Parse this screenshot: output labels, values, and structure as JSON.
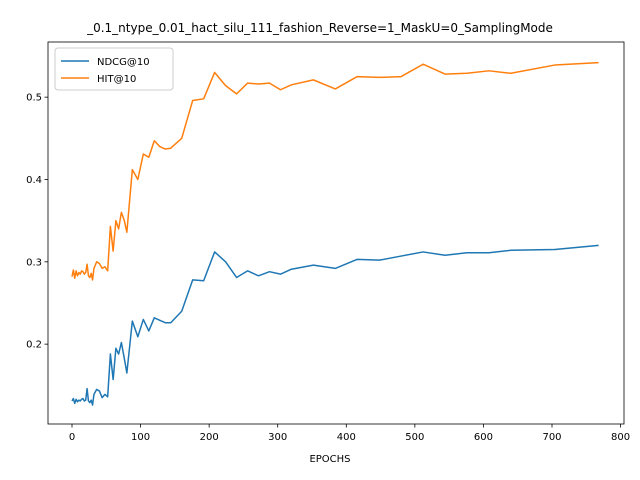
{
  "chart_data": {
    "type": "line",
    "title": "_0.1_ntype_0.01_hact_silu_111_fashion_Reverse=1_MaskU=0_SamplingMode",
    "xlabel": "EPOCHS",
    "ylabel": "",
    "xlim": [
      -35,
      805
    ],
    "ylim": [
      0.103,
      0.567
    ],
    "xticks": [
      0,
      100,
      200,
      300,
      400,
      500,
      600,
      700,
      800
    ],
    "yticks": [
      0.2,
      0.3,
      0.4,
      0.5
    ],
    "grid": false,
    "legend": "top-left",
    "series": [
      {
        "name": "NDCG@10",
        "color": "#1f77b4",
        "x": [
          0,
          2,
          4,
          6,
          8,
          10,
          12,
          14,
          16,
          18,
          20,
          22,
          24,
          26,
          28,
          30,
          32,
          36,
          40,
          44,
          48,
          52,
          56,
          60,
          64,
          68,
          72,
          76,
          80,
          88,
          96,
          104,
          112,
          120,
          128,
          136,
          144,
          160,
          176,
          192,
          208,
          224,
          240,
          256,
          272,
          288,
          304,
          320,
          352,
          384,
          416,
          448,
          480,
          512,
          544,
          576,
          608,
          640,
          704,
          768
        ],
        "y": [
          0.131,
          0.134,
          0.128,
          0.133,
          0.13,
          0.132,
          0.131,
          0.133,
          0.134,
          0.131,
          0.132,
          0.146,
          0.131,
          0.129,
          0.132,
          0.126,
          0.139,
          0.145,
          0.143,
          0.135,
          0.139,
          0.136,
          0.188,
          0.157,
          0.195,
          0.188,
          0.202,
          0.184,
          0.165,
          0.228,
          0.209,
          0.23,
          0.216,
          0.232,
          0.229,
          0.226,
          0.226,
          0.24,
          0.278,
          0.277,
          0.312,
          0.3,
          0.281,
          0.289,
          0.283,
          0.288,
          0.285,
          0.291,
          0.296,
          0.292,
          0.303,
          0.302,
          0.307,
          0.312,
          0.308,
          0.311,
          0.311,
          0.314,
          0.315,
          0.32
        ]
      },
      {
        "name": "HIT@10",
        "color": "#ff7f0e",
        "x": [
          0,
          2,
          4,
          6,
          8,
          10,
          12,
          14,
          16,
          18,
          20,
          22,
          24,
          26,
          28,
          30,
          32,
          36,
          40,
          44,
          48,
          52,
          56,
          60,
          64,
          68,
          72,
          76,
          80,
          88,
          96,
          104,
          112,
          120,
          128,
          136,
          144,
          160,
          176,
          192,
          208,
          224,
          240,
          256,
          272,
          288,
          304,
          320,
          352,
          384,
          416,
          448,
          480,
          512,
          544,
          576,
          608,
          640,
          704,
          768
        ],
        "y": [
          0.282,
          0.29,
          0.28,
          0.289,
          0.283,
          0.287,
          0.285,
          0.289,
          0.288,
          0.285,
          0.287,
          0.297,
          0.283,
          0.281,
          0.286,
          0.278,
          0.292,
          0.3,
          0.298,
          0.292,
          0.294,
          0.289,
          0.343,
          0.313,
          0.35,
          0.34,
          0.36,
          0.351,
          0.336,
          0.412,
          0.4,
          0.431,
          0.427,
          0.447,
          0.44,
          0.437,
          0.438,
          0.45,
          0.496,
          0.498,
          0.53,
          0.514,
          0.504,
          0.517,
          0.516,
          0.517,
          0.509,
          0.515,
          0.521,
          0.51,
          0.525,
          0.524,
          0.525,
          0.54,
          0.528,
          0.529,
          0.532,
          0.529,
          0.539,
          0.542
        ]
      }
    ]
  }
}
